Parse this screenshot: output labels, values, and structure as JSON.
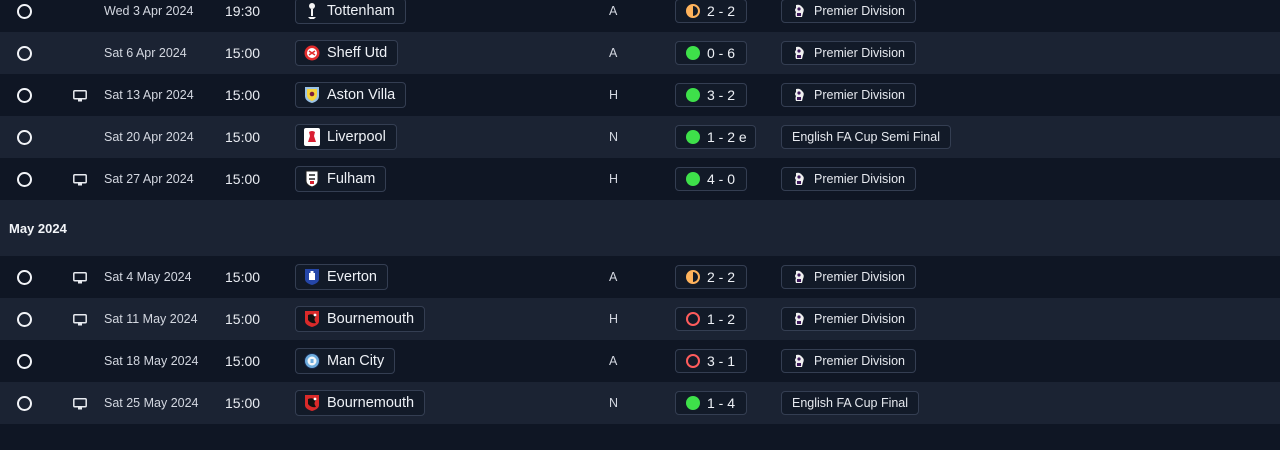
{
  "sections": [
    {
      "header": "",
      "matches": [
        {
          "date": "Wed 3 Apr 2024",
          "time": "19:30",
          "team": "Tottenham",
          "crest": "tottenham-crest",
          "venue": "A",
          "outcome": "draw",
          "score": "2 - 2",
          "competition": "Premier Division",
          "tv": false,
          "comp_icon": "premier-league-icon"
        },
        {
          "date": "Sat 6 Apr 2024",
          "time": "15:00",
          "team": "Sheff Utd",
          "crest": "sheff-utd-crest",
          "venue": "A",
          "outcome": "win",
          "score": "0 - 6",
          "competition": "Premier Division",
          "tv": false,
          "comp_icon": "premier-league-icon"
        },
        {
          "date": "Sat 13 Apr 2024",
          "time": "15:00",
          "team": "Aston Villa",
          "crest": "aston-villa-crest",
          "venue": "H",
          "outcome": "win",
          "score": "3 - 2",
          "competition": "Premier Division",
          "tv": true,
          "comp_icon": "premier-league-icon"
        },
        {
          "date": "Sat 20 Apr 2024",
          "time": "15:00",
          "team": "Liverpool",
          "crest": "liverpool-crest",
          "venue": "N",
          "outcome": "win",
          "score": "1 - 2 e",
          "competition": "English FA Cup Semi Final",
          "tv": false,
          "comp_icon": ""
        },
        {
          "date": "Sat 27 Apr 2024",
          "time": "15:00",
          "team": "Fulham",
          "crest": "fulham-crest",
          "venue": "H",
          "outcome": "win",
          "score": "4 - 0",
          "competition": "Premier Division",
          "tv": true,
          "comp_icon": "premier-league-icon"
        }
      ]
    },
    {
      "header": "May 2024",
      "matches": [
        {
          "date": "Sat 4 May 2024",
          "time": "15:00",
          "team": "Everton",
          "crest": "everton-crest",
          "venue": "A",
          "outcome": "draw",
          "score": "2 - 2",
          "competition": "Premier Division",
          "tv": true,
          "comp_icon": "premier-league-icon"
        },
        {
          "date": "Sat 11 May 2024",
          "time": "15:00",
          "team": "Bournemouth",
          "crest": "bournemouth-crest",
          "venue": "H",
          "outcome": "loss",
          "score": "1 - 2",
          "competition": "Premier Division",
          "tv": true,
          "comp_icon": "premier-league-icon"
        },
        {
          "date": "Sat 18 May 2024",
          "time": "15:00",
          "team": "Man City",
          "crest": "man-city-crest",
          "venue": "A",
          "outcome": "loss",
          "score": "3 - 1",
          "competition": "Premier Division",
          "tv": false,
          "comp_icon": "premier-league-icon"
        },
        {
          "date": "Sat 25 May 2024",
          "time": "15:00",
          "team": "Bournemouth",
          "crest": "bournemouth-crest",
          "venue": "N",
          "outcome": "win",
          "score": "1 - 4",
          "competition": "English FA Cup Final",
          "tv": true,
          "comp_icon": ""
        }
      ]
    }
  ],
  "colors": {
    "win": "#3ee04a",
    "draw": "#ffb35c",
    "loss": "#ff5c5c",
    "background": "#0f1624",
    "row_alt": "#1b2333"
  }
}
